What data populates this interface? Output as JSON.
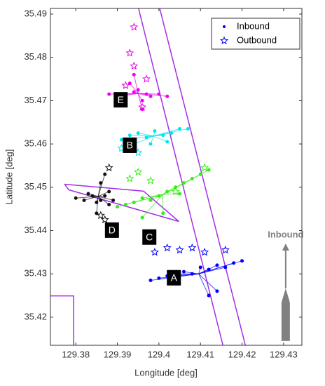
{
  "chart_data": {
    "type": "scatter",
    "xlabel": "Longitude [deg]",
    "ylabel": "Latitude [deg]",
    "xlim": [
      129.3739,
      129.4344
    ],
    "ylim": [
      35.4135,
      35.4913
    ],
    "xticks": [
      129.38,
      129.39,
      129.4,
      129.41,
      129.42,
      129.43
    ],
    "yticks": [
      35.42,
      35.43,
      35.44,
      35.45,
      35.46,
      35.47,
      35.48,
      35.49
    ],
    "legend_position": "upper right",
    "legend": [
      {
        "label": "Inbound",
        "marker": "dot",
        "color": "#0000ff"
      },
      {
        "label": "Outbound",
        "marker": "star",
        "color": "#0000ff"
      }
    ],
    "boundary_color": "#a32ee6",
    "boundaries": [
      {
        "x": [
          129.3951,
          129.4154
        ],
        "y": [
          35.4913,
          35.4135
        ]
      },
      {
        "x": [
          129.4002,
          129.4208
        ],
        "y": [
          35.4913,
          35.4135
        ]
      },
      {
        "x": [
          129.3773,
          129.3963,
          129.4048,
          129.3783,
          129.3773
        ],
        "y": [
          35.4507,
          35.4491,
          35.4421,
          35.4494,
          35.4507
        ]
      },
      {
        "x": [
          129.3739,
          129.3795,
          129.3795
        ],
        "y": [
          35.4249,
          35.4249,
          35.4135
        ]
      }
    ],
    "clusters": [
      {
        "label": "A",
        "color": "#0000ff",
        "label_x": 129.4036,
        "label_y": 35.4291,
        "inbound": {
          "x": [
            129.398,
            129.4,
            129.402,
            129.404,
            129.406,
            129.408,
            129.41,
            129.412,
            129.414,
            129.416,
            129.418,
            129.42,
            129.412,
            129.414
          ],
          "y": [
            35.4285,
            35.429,
            35.4295,
            35.43,
            35.4305,
            35.43,
            35.4315,
            35.431,
            35.432,
            35.4315,
            35.4325,
            35.433,
            35.425,
            35.426
          ]
        },
        "outbound": {
          "x": [
            129.399,
            129.402,
            129.405,
            129.408,
            129.411,
            129.416
          ],
          "y": [
            35.435,
            35.436,
            35.4355,
            35.436,
            35.435,
            35.4355
          ]
        }
      },
      {
        "label": "B",
        "color": "#00e5ee",
        "label_x": 129.393,
        "label_y": 35.4597,
        "inbound": {
          "x": [
            129.391,
            129.393,
            129.395,
            129.397,
            129.399,
            129.401,
            129.403,
            129.405,
            129.407,
            129.394,
            129.398,
            129.402
          ],
          "y": [
            35.461,
            35.462,
            35.4625,
            35.4615,
            35.463,
            35.462,
            35.4625,
            35.4635,
            35.4635,
            35.46,
            35.46,
            35.4605
          ]
        },
        "outbound": {
          "x": [
            129.391,
            129.395
          ],
          "y": [
            35.459,
            35.458
          ]
        }
      },
      {
        "label": "C",
        "color": "#33ee11",
        "label_x": 129.3977,
        "label_y": 35.4385,
        "inbound": {
          "x": [
            129.39,
            129.392,
            129.394,
            129.396,
            129.398,
            129.4,
            129.402,
            129.404,
            129.406,
            129.408,
            129.41,
            129.412,
            129.396,
            129.401,
            129.405
          ],
          "y": [
            35.4455,
            35.446,
            35.4465,
            35.4475,
            35.447,
            35.448,
            35.449,
            35.45,
            35.451,
            35.452,
            35.453,
            35.454,
            35.443,
            35.444,
            35.4485
          ]
        },
        "outbound": {
          "x": [
            129.395,
            129.398,
            129.404,
            129.411,
            129.393
          ],
          "y": [
            35.4535,
            35.4515,
            35.449,
            35.4545,
            35.452
          ]
        }
      },
      {
        "label": "D",
        "color": "#111111",
        "label_x": 129.3887,
        "label_y": 35.4401,
        "inbound": {
          "x": [
            129.38,
            129.382,
            129.384,
            129.385,
            129.386,
            129.387,
            129.388,
            129.386,
            129.387,
            129.388,
            129.385,
            129.389,
            129.383
          ],
          "y": [
            35.4475,
            35.447,
            35.448,
            35.4465,
            35.447,
            35.448,
            35.449,
            35.451,
            35.453,
            35.446,
            35.444,
            35.447,
            35.4485
          ]
        },
        "outbound": {
          "x": [
            129.386,
            129.388,
            129.387
          ],
          "y": [
            35.4435,
            35.4545,
            35.4425
          ]
        }
      },
      {
        "label": "E",
        "color": "#ee00ee",
        "label_x": 129.3908,
        "label_y": 35.4702,
        "inbound": {
          "x": [
            129.388,
            129.39,
            129.392,
            129.394,
            129.395,
            129.396,
            129.397,
            129.398,
            129.4,
            129.402,
            129.393,
            129.396,
            129.394
          ],
          "y": [
            35.4715,
            35.471,
            35.4715,
            35.472,
            35.4725,
            35.47,
            35.4715,
            35.471,
            35.4715,
            35.471,
            35.474,
            35.468,
            35.476
          ]
        },
        "outbound": {
          "x": [
            129.394,
            129.393,
            129.394,
            129.392,
            129.397,
            129.396
          ],
          "y": [
            35.487,
            35.481,
            35.478,
            35.4735,
            35.475,
            35.4685
          ]
        }
      }
    ],
    "arrow": {
      "label": "Inbound",
      "x": 129.4305,
      "y": [
        35.4145,
        35.437
      ],
      "color": "#808080"
    }
  }
}
